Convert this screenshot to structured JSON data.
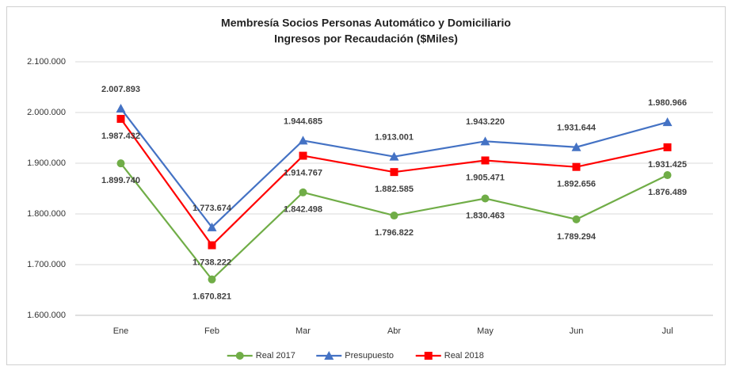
{
  "chart_data": {
    "type": "line",
    "title": "Membresía Socios Personas Automático y Domiciliario",
    "subtitle": "Ingresos por Recaudación ($Miles)",
    "categories": [
      "Ene",
      "Feb",
      "Mar",
      "Abr",
      "May",
      "Jun",
      "Jul"
    ],
    "series": [
      {
        "name": "Real 2017",
        "color": "#70ad47",
        "marker": "circle",
        "values": [
          1899740,
          1670821,
          1842498,
          1796822,
          1830463,
          1789294,
          1876489
        ],
        "value_labels": [
          "1.899.740",
          "1.670.821",
          "1.842.498",
          "1.796.822",
          "1.830.463",
          "1.789.294",
          "1.876.489"
        ]
      },
      {
        "name": "Presupuesto",
        "color": "#4472c4",
        "marker": "triangle",
        "values": [
          2007893,
          1773674,
          1944685,
          1913001,
          1943220,
          1931644,
          1980966
        ],
        "value_labels": [
          "2.007.893",
          "1.773.674",
          "1.944.685",
          "1.913.001",
          "1.943.220",
          "1.931.644",
          "1.980.966"
        ]
      },
      {
        "name": "Real 2018",
        "color": "#ff0000",
        "marker": "square",
        "values": [
          1987432,
          1738222,
          1914767,
          1882585,
          1905471,
          1892656,
          1931425
        ],
        "value_labels": [
          "1.987.432",
          "1.738.222",
          "1.914.767",
          "1.882.585",
          "1.905.471",
          "1.892.656",
          "1.931.425"
        ]
      }
    ],
    "ylim": [
      1600000,
      2100000
    ],
    "yticks": [
      {
        "value": 1600000,
        "label": "1.600.000"
      },
      {
        "value": 1700000,
        "label": "1.700.000"
      },
      {
        "value": 1800000,
        "label": "1.800.000"
      },
      {
        "value": 1900000,
        "label": "1.900.000"
      },
      {
        "value": 2000000,
        "label": "2.000.000"
      },
      {
        "value": 2100000,
        "label": "2.100.000"
      }
    ],
    "grid": true,
    "legend": "bottom"
  }
}
